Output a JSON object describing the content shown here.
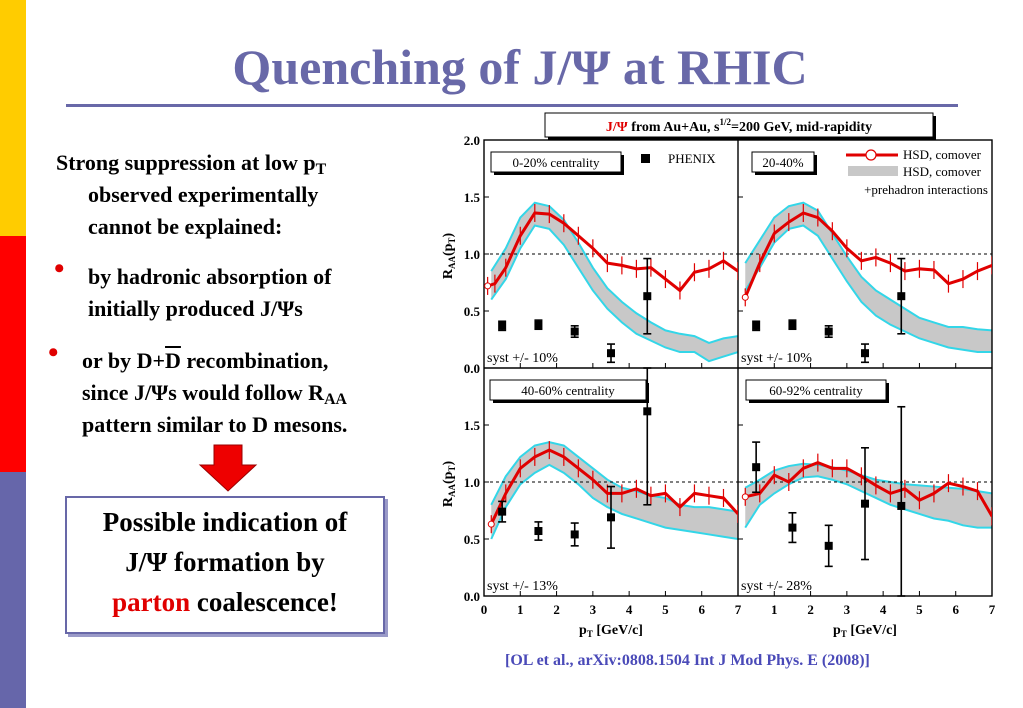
{
  "slide": {
    "title": "Quenching of J/Ψ at RHIC",
    "sidebar_colors": [
      "#ffcc00",
      "#ff0000",
      "#6666aa"
    ],
    "intro_line1": "Strong suppression at low p",
    "intro_line1_sub": "T",
    "intro_line2": "observed  experimentally",
    "intro_line3": "cannot be explained:",
    "bullet1_line1": "by hadronic absorption of",
    "bullet1_line2": "initially produced J/Ψs",
    "bullet2_line1_a": "or by D+",
    "bullet2_line1_dbar": "D",
    "bullet2_line1_b": " recombination,",
    "bullet2_line2": "since J/Ψs would follow R",
    "bullet2_line2_sub": "AA",
    "bullet2_line3": "pattern similar to D mesons.",
    "conclusion_line1": "Possible indication of",
    "conclusion_line2": "J/Ψ formation by",
    "conclusion_red": "parton",
    "conclusion_tail": " coalescence!",
    "reference": "[OL et al., arXiv:0808.1504  Int J Mod Phys. E  (2008)]"
  },
  "chart_data": {
    "type": "line",
    "header_red": "J/Ψ",
    "header_rest": " from Au+Au, s",
    "header_sup": "1/2",
    "header_tail": "=200 GeV, mid-rapidity",
    "xlabel": "p",
    "xlabel_sub": "T",
    "xlabel_unit": " [GeV/c]",
    "ylabel": "R",
    "ylabel_sub": "AA",
    "ylabel_arg": "(p",
    "ylabel_arg_sub": "T",
    "ylabel_close": ")",
    "xlim": [
      0,
      7
    ],
    "ylim": [
      0,
      2.0
    ],
    "x_ticks": [
      "0",
      "1",
      "2",
      "3",
      "4",
      "5",
      "6",
      "7"
    ],
    "y_ticks": [
      "0.0",
      "0.5",
      "1.0",
      "1.5",
      "2.0"
    ],
    "reference_line": 1.0,
    "legend": {
      "phenix": "PHENIX",
      "hsd_line": "HSD, comover",
      "hsd_band_1": "HSD, comover",
      "hsd_band_2": "+prehadron interactions"
    },
    "panels": [
      {
        "label": "0-20% centrality",
        "syst": "syst +/- 10%",
        "phenix": [
          {
            "x": 0.5,
            "y": 0.37,
            "err": 0.04
          },
          {
            "x": 1.5,
            "y": 0.38,
            "err": 0.04
          },
          {
            "x": 2.5,
            "y": 0.32,
            "err": 0.05
          },
          {
            "x": 3.5,
            "y": 0.13,
            "err": 0.08
          },
          {
            "x": 4.5,
            "y": 0.63,
            "err": 0.33
          }
        ],
        "hsd_line": [
          {
            "x": 0.1,
            "y": 0.72
          },
          {
            "x": 0.3,
            "y": 0.74
          },
          {
            "x": 0.6,
            "y": 0.88
          },
          {
            "x": 1.0,
            "y": 1.16
          },
          {
            "x": 1.4,
            "y": 1.36
          },
          {
            "x": 1.8,
            "y": 1.35
          },
          {
            "x": 2.2,
            "y": 1.27
          },
          {
            "x": 2.6,
            "y": 1.16
          },
          {
            "x": 3.0,
            "y": 1.05
          },
          {
            "x": 3.4,
            "y": 0.92
          },
          {
            "x": 3.8,
            "y": 0.9
          },
          {
            "x": 4.2,
            "y": 0.87
          },
          {
            "x": 4.6,
            "y": 0.88
          },
          {
            "x": 5.0,
            "y": 0.78
          },
          {
            "x": 5.4,
            "y": 0.68
          },
          {
            "x": 5.8,
            "y": 0.84
          },
          {
            "x": 6.2,
            "y": 0.87
          },
          {
            "x": 6.6,
            "y": 0.94
          },
          {
            "x": 7.0,
            "y": 0.85
          }
        ],
        "hsd_band_upper": [
          {
            "x": 0.2,
            "y": 0.85
          },
          {
            "x": 0.6,
            "y": 1.05
          },
          {
            "x": 1.0,
            "y": 1.32
          },
          {
            "x": 1.4,
            "y": 1.45
          },
          {
            "x": 1.8,
            "y": 1.42
          },
          {
            "x": 2.2,
            "y": 1.3
          },
          {
            "x": 2.6,
            "y": 1.1
          },
          {
            "x": 3.0,
            "y": 0.88
          },
          {
            "x": 3.4,
            "y": 0.7
          },
          {
            "x": 3.8,
            "y": 0.58
          },
          {
            "x": 4.2,
            "y": 0.48
          },
          {
            "x": 4.6,
            "y": 0.4
          },
          {
            "x": 5.0,
            "y": 0.33
          },
          {
            "x": 5.4,
            "y": 0.3
          },
          {
            "x": 5.8,
            "y": 0.28
          },
          {
            "x": 6.2,
            "y": 0.22
          },
          {
            "x": 6.6,
            "y": 0.26
          },
          {
            "x": 7.0,
            "y": 0.28
          }
        ],
        "hsd_band_lower": [
          {
            "x": 0.2,
            "y": 0.6
          },
          {
            "x": 0.6,
            "y": 0.78
          },
          {
            "x": 1.0,
            "y": 1.05
          },
          {
            "x": 1.4,
            "y": 1.25
          },
          {
            "x": 1.8,
            "y": 1.22
          },
          {
            "x": 2.2,
            "y": 1.08
          },
          {
            "x": 2.6,
            "y": 0.88
          },
          {
            "x": 3.0,
            "y": 0.68
          },
          {
            "x": 3.4,
            "y": 0.52
          },
          {
            "x": 3.8,
            "y": 0.4
          },
          {
            "x": 4.2,
            "y": 0.3
          },
          {
            "x": 4.6,
            "y": 0.24
          },
          {
            "x": 5.0,
            "y": 0.18
          },
          {
            "x": 5.4,
            "y": 0.14
          },
          {
            "x": 5.8,
            "y": 0.14
          },
          {
            "x": 6.2,
            "y": 0.06
          },
          {
            "x": 6.6,
            "y": 0.1
          },
          {
            "x": 7.0,
            "y": 0.14
          }
        ]
      },
      {
        "label": "20-40%",
        "syst": "syst +/- 10%",
        "phenix": [
          {
            "x": 0.5,
            "y": 0.37,
            "err": 0.04
          },
          {
            "x": 1.5,
            "y": 0.38,
            "err": 0.04
          },
          {
            "x": 2.5,
            "y": 0.32,
            "err": 0.05
          },
          {
            "x": 3.5,
            "y": 0.13,
            "err": 0.08
          },
          {
            "x": 4.5,
            "y": 0.63,
            "err": 0.33
          }
        ],
        "hsd_line": [
          {
            "x": 0.2,
            "y": 0.62
          },
          {
            "x": 0.6,
            "y": 0.92
          },
          {
            "x": 1.0,
            "y": 1.18
          },
          {
            "x": 1.4,
            "y": 1.28
          },
          {
            "x": 1.8,
            "y": 1.36
          },
          {
            "x": 2.2,
            "y": 1.32
          },
          {
            "x": 2.6,
            "y": 1.2
          },
          {
            "x": 3.0,
            "y": 1.05
          },
          {
            "x": 3.4,
            "y": 0.94
          },
          {
            "x": 3.8,
            "y": 0.97
          },
          {
            "x": 4.2,
            "y": 0.92
          },
          {
            "x": 4.6,
            "y": 0.85
          },
          {
            "x": 5.0,
            "y": 0.87
          },
          {
            "x": 5.4,
            "y": 0.86
          },
          {
            "x": 5.8,
            "y": 0.74
          },
          {
            "x": 6.2,
            "y": 0.78
          },
          {
            "x": 6.6,
            "y": 0.85
          },
          {
            "x": 7.0,
            "y": 0.9
          }
        ],
        "hsd_band_upper": [
          {
            "x": 0.2,
            "y": 0.92
          },
          {
            "x": 0.6,
            "y": 1.12
          },
          {
            "x": 1.0,
            "y": 1.32
          },
          {
            "x": 1.4,
            "y": 1.42
          },
          {
            "x": 1.8,
            "y": 1.45
          },
          {
            "x": 2.2,
            "y": 1.38
          },
          {
            "x": 2.6,
            "y": 1.18
          },
          {
            "x": 3.0,
            "y": 0.98
          },
          {
            "x": 3.4,
            "y": 0.8
          },
          {
            "x": 3.8,
            "y": 0.68
          },
          {
            "x": 4.2,
            "y": 0.6
          },
          {
            "x": 4.6,
            "y": 0.52
          },
          {
            "x": 5.0,
            "y": 0.44
          },
          {
            "x": 5.4,
            "y": 0.4
          },
          {
            "x": 5.8,
            "y": 0.36
          },
          {
            "x": 6.2,
            "y": 0.36
          },
          {
            "x": 6.6,
            "y": 0.34
          },
          {
            "x": 7.0,
            "y": 0.33
          }
        ],
        "hsd_band_lower": [
          {
            "x": 0.2,
            "y": 0.68
          },
          {
            "x": 0.6,
            "y": 0.88
          },
          {
            "x": 1.0,
            "y": 1.1
          },
          {
            "x": 1.4,
            "y": 1.22
          },
          {
            "x": 1.8,
            "y": 1.25
          },
          {
            "x": 2.2,
            "y": 1.16
          },
          {
            "x": 2.6,
            "y": 0.96
          },
          {
            "x": 3.0,
            "y": 0.76
          },
          {
            "x": 3.4,
            "y": 0.58
          },
          {
            "x": 3.8,
            "y": 0.46
          },
          {
            "x": 4.2,
            "y": 0.38
          },
          {
            "x": 4.6,
            "y": 0.32
          },
          {
            "x": 5.0,
            "y": 0.26
          },
          {
            "x": 5.4,
            "y": 0.22
          },
          {
            "x": 5.8,
            "y": 0.18
          },
          {
            "x": 6.2,
            "y": 0.16
          },
          {
            "x": 6.6,
            "y": 0.14
          },
          {
            "x": 7.0,
            "y": 0.14
          }
        ]
      },
      {
        "label": "40-60% centrality",
        "syst": "syst +/- 13%",
        "phenix": [
          {
            "x": 0.5,
            "y": 0.74,
            "err": 0.09
          },
          {
            "x": 1.5,
            "y": 0.57,
            "err": 0.08
          },
          {
            "x": 2.5,
            "y": 0.54,
            "err": 0.1
          },
          {
            "x": 3.5,
            "y": 0.69,
            "err": 0.27
          },
          {
            "x": 4.5,
            "y": 1.62,
            "err": 0.82
          }
        ],
        "hsd_line": [
          {
            "x": 0.2,
            "y": 0.63
          },
          {
            "x": 0.6,
            "y": 0.9
          },
          {
            "x": 1.0,
            "y": 1.12
          },
          {
            "x": 1.4,
            "y": 1.22
          },
          {
            "x": 1.8,
            "y": 1.28
          },
          {
            "x": 2.2,
            "y": 1.22
          },
          {
            "x": 2.6,
            "y": 1.12
          },
          {
            "x": 3.0,
            "y": 1.02
          },
          {
            "x": 3.4,
            "y": 0.9
          },
          {
            "x": 3.8,
            "y": 0.9
          },
          {
            "x": 4.2,
            "y": 0.94
          },
          {
            "x": 4.6,
            "y": 0.88
          },
          {
            "x": 5.0,
            "y": 0.9
          },
          {
            "x": 5.4,
            "y": 0.78
          },
          {
            "x": 5.8,
            "y": 0.9
          },
          {
            "x": 6.2,
            "y": 0.88
          },
          {
            "x": 6.6,
            "y": 0.86
          },
          {
            "x": 7.0,
            "y": 0.72
          }
        ],
        "hsd_band_upper": [
          {
            "x": 0.2,
            "y": 0.8
          },
          {
            "x": 0.6,
            "y": 1.05
          },
          {
            "x": 1.0,
            "y": 1.22
          },
          {
            "x": 1.4,
            "y": 1.32
          },
          {
            "x": 1.8,
            "y": 1.35
          },
          {
            "x": 2.2,
            "y": 1.32
          },
          {
            "x": 2.6,
            "y": 1.22
          },
          {
            "x": 3.0,
            "y": 1.12
          },
          {
            "x": 3.4,
            "y": 1.02
          },
          {
            "x": 3.8,
            "y": 0.95
          },
          {
            "x": 4.2,
            "y": 0.92
          },
          {
            "x": 4.6,
            "y": 0.88
          },
          {
            "x": 5.0,
            "y": 0.86
          },
          {
            "x": 5.4,
            "y": 0.8
          },
          {
            "x": 5.8,
            "y": 0.78
          },
          {
            "x": 6.2,
            "y": 0.78
          },
          {
            "x": 6.6,
            "y": 0.76
          },
          {
            "x": 7.0,
            "y": 0.74
          }
        ],
        "hsd_band_lower": [
          {
            "x": 0.2,
            "y": 0.5
          },
          {
            "x": 0.6,
            "y": 0.78
          },
          {
            "x": 1.0,
            "y": 0.98
          },
          {
            "x": 1.4,
            "y": 1.08
          },
          {
            "x": 1.8,
            "y": 1.15
          },
          {
            "x": 2.2,
            "y": 1.08
          },
          {
            "x": 2.6,
            "y": 0.98
          },
          {
            "x": 3.0,
            "y": 0.86
          },
          {
            "x": 3.4,
            "y": 0.78
          },
          {
            "x": 3.8,
            "y": 0.72
          },
          {
            "x": 4.2,
            "y": 0.68
          },
          {
            "x": 4.6,
            "y": 0.64
          },
          {
            "x": 5.0,
            "y": 0.6
          },
          {
            "x": 5.4,
            "y": 0.58
          },
          {
            "x": 5.8,
            "y": 0.56
          },
          {
            "x": 6.2,
            "y": 0.54
          },
          {
            "x": 6.6,
            "y": 0.52
          },
          {
            "x": 7.0,
            "y": 0.5
          }
        ]
      },
      {
        "label": "60-92% centrality",
        "syst": "syst +/- 28%",
        "phenix": [
          {
            "x": 0.5,
            "y": 1.13,
            "err": 0.22
          },
          {
            "x": 1.5,
            "y": 0.6,
            "err": 0.13
          },
          {
            "x": 2.5,
            "y": 0.44,
            "err": 0.18
          },
          {
            "x": 3.5,
            "y": 0.81,
            "err": 0.49
          },
          {
            "x": 4.5,
            "y": 0.79,
            "err": 0.87
          }
        ],
        "hsd_line": [
          {
            "x": 0.2,
            "y": 0.87
          },
          {
            "x": 0.6,
            "y": 0.9
          },
          {
            "x": 1.0,
            "y": 1.06
          },
          {
            "x": 1.4,
            "y": 1.0
          },
          {
            "x": 1.8,
            "y": 1.12
          },
          {
            "x": 2.2,
            "y": 1.17
          },
          {
            "x": 2.6,
            "y": 1.12
          },
          {
            "x": 3.0,
            "y": 1.12
          },
          {
            "x": 3.4,
            "y": 1.05
          },
          {
            "x": 3.8,
            "y": 0.97
          },
          {
            "x": 4.2,
            "y": 0.9
          },
          {
            "x": 4.6,
            "y": 0.94
          },
          {
            "x": 5.0,
            "y": 0.84
          },
          {
            "x": 5.4,
            "y": 0.9
          },
          {
            "x": 5.8,
            "y": 0.99
          },
          {
            "x": 6.2,
            "y": 0.96
          },
          {
            "x": 6.6,
            "y": 0.92
          },
          {
            "x": 7.0,
            "y": 0.7
          }
        ],
        "hsd_band_upper": [
          {
            "x": 0.2,
            "y": 0.95
          },
          {
            "x": 0.6,
            "y": 1.02
          },
          {
            "x": 1.0,
            "y": 1.1
          },
          {
            "x": 1.4,
            "y": 1.14
          },
          {
            "x": 1.8,
            "y": 1.16
          },
          {
            "x": 2.2,
            "y": 1.15
          },
          {
            "x": 2.6,
            "y": 1.13
          },
          {
            "x": 3.0,
            "y": 1.1
          },
          {
            "x": 3.4,
            "y": 1.06
          },
          {
            "x": 3.8,
            "y": 1.02
          },
          {
            "x": 4.2,
            "y": 1.0
          },
          {
            "x": 4.6,
            "y": 0.98
          },
          {
            "x": 5.0,
            "y": 0.97
          },
          {
            "x": 5.4,
            "y": 0.96
          },
          {
            "x": 5.8,
            "y": 0.95
          },
          {
            "x": 6.2,
            "y": 0.94
          },
          {
            "x": 6.6,
            "y": 0.92
          },
          {
            "x": 7.0,
            "y": 0.9
          }
        ],
        "hsd_band_lower": [
          {
            "x": 0.2,
            "y": 0.6
          },
          {
            "x": 0.6,
            "y": 0.8
          },
          {
            "x": 1.0,
            "y": 0.9
          },
          {
            "x": 1.4,
            "y": 0.98
          },
          {
            "x": 1.8,
            "y": 1.04
          },
          {
            "x": 2.2,
            "y": 1.05
          },
          {
            "x": 2.6,
            "y": 1.02
          },
          {
            "x": 3.0,
            "y": 0.98
          },
          {
            "x": 3.4,
            "y": 0.92
          },
          {
            "x": 3.8,
            "y": 0.86
          },
          {
            "x": 4.2,
            "y": 0.8
          },
          {
            "x": 4.6,
            "y": 0.76
          },
          {
            "x": 5.0,
            "y": 0.72
          },
          {
            "x": 5.4,
            "y": 0.68
          },
          {
            "x": 5.8,
            "y": 0.66
          },
          {
            "x": 6.2,
            "y": 0.62
          },
          {
            "x": 6.6,
            "y": 0.6
          },
          {
            "x": 7.0,
            "y": 0.6
          }
        ]
      }
    ],
    "colors": {
      "hsd_line": "#e00000",
      "band_fill": "#c8c8c8",
      "band_edge": "#33d6e8",
      "phenix": "#000000",
      "header_red": "#e00000"
    }
  }
}
